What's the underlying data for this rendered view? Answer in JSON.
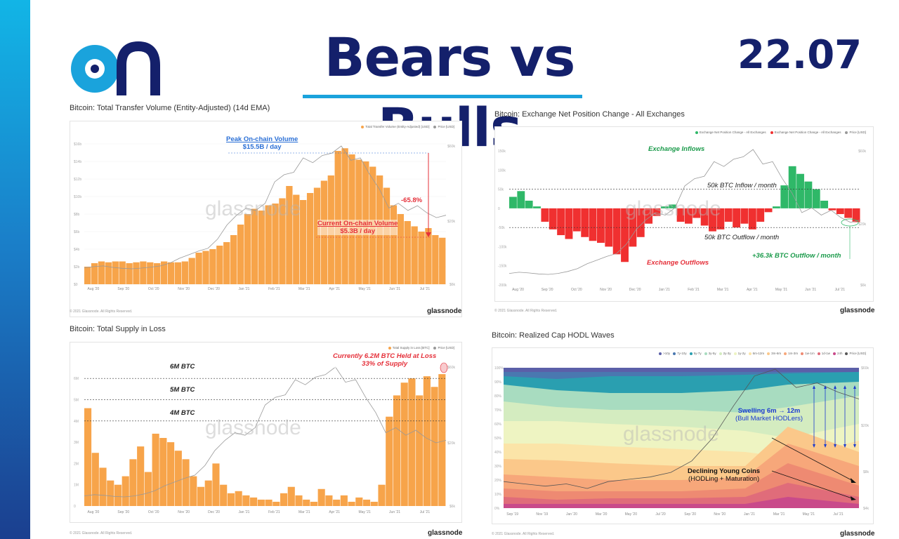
{
  "header": {
    "title": "Bears vs Bulls",
    "date": "22.07"
  },
  "footer": {
    "copyright": "© 2021 Glassnode. All Rights Reserved.",
    "brand": "glassnode",
    "watermark": "glassnode"
  },
  "panels": {
    "p1": {
      "title": "Bitcoin: Total Transfer Volume (Entity-Adjusted) (14d EMA)",
      "legend": [
        "Total Transfer Volume (Entity-Adjusted) [USD]",
        "Price [USD]"
      ],
      "ann_peak_l1": "Peak On-chain Volume",
      "ann_peak_l2": "$15.5B / day",
      "ann_cur_l1": "Current On-chain Volume",
      "ann_cur_l2": "$5.3B / day",
      "ann_pct": "-65.8%"
    },
    "p2": {
      "title": "Bitcoin: Exchange Net Position Change - All Exchanges",
      "legend": [
        "Exchange Net Position Change - All Exchanges",
        "Exchange Net Position Change - All Exchanges",
        "Price [USD]"
      ],
      "ann_inflows": "Exchange Inflows",
      "ann_outflows": "Exchange Outflows",
      "ann_inflow_line": "50k BTC Inflow / month",
      "ann_outflow_line": "50k BTC Outflow / month",
      "ann_current": "+36.3k BTC Outflow / month"
    },
    "p3": {
      "title": "Bitcoin: Total Supply in Loss",
      "legend": [
        "Total Supply in Loss [BTC]",
        "Price [USD]"
      ],
      "ann_6m": "6M BTC",
      "ann_5m": "5M BTC",
      "ann_4m": "4M BTC",
      "ann_cur_l1": "Currently 6.2M BTC Held at Loss",
      "ann_cur_l2": "33% of Supply"
    },
    "p4": {
      "title": "Bitcoin: Realized Cap HODL Waves",
      "legend": [
        ">10y",
        "7y-10y",
        "5y-7y",
        "3y-5y",
        "2y-3y",
        "1y-2y",
        "6m-12m",
        "3m-6m",
        "1m-3m",
        "1w-1m",
        "1d-1w",
        "24h",
        "Price [USD]"
      ],
      "ann_swell_l1": "Swelling 6m → 12m",
      "ann_swell_l2": "(Bull Market HODLers)",
      "ann_young_l1": "Declining Young Coins",
      "ann_young_l2": "(HODLing + Maturation)"
    }
  },
  "chart_data": [
    {
      "type": "bar",
      "title": "Bitcoin: Total Transfer Volume (Entity-Adjusted) (14d EMA)",
      "x_ticks": [
        "Aug '20",
        "Sep '20",
        "Oct '20",
        "Nov '20",
        "Dec '20",
        "Jan '21",
        "Feb '21",
        "Mar '21",
        "Apr '21",
        "May '21",
        "Jun '21",
        "Jul '21"
      ],
      "y_ticks": [
        "$0",
        "$2b",
        "$4b",
        "$6b",
        "$8b",
        "$10b",
        "$12b",
        "$14b",
        "$16b"
      ],
      "y2_ticks": [
        "$6k",
        "$20k",
        "$60k"
      ],
      "ylim": [
        0,
        16
      ],
      "series": [
        {
          "name": "Total Transfer Volume (Entity-Adjusted) [USD]",
          "unit": "$B",
          "color": "#f7a44a",
          "values": [
            2.0,
            2.4,
            2.6,
            2.5,
            2.6,
            2.6,
            2.4,
            2.5,
            2.6,
            2.5,
            2.4,
            2.6,
            2.5,
            2.5,
            2.6,
            3.0,
            3.6,
            3.8,
            4.0,
            4.4,
            4.8,
            5.6,
            6.8,
            8.0,
            8.6,
            8.4,
            9.0,
            9.2,
            9.8,
            11.2,
            10.2,
            9.6,
            10.4,
            11.0,
            11.8,
            12.4,
            15.2,
            15.5,
            14.8,
            14.2,
            14.0,
            13.4,
            12.4,
            11.0,
            9.0,
            8.0,
            7.2,
            6.6,
            6.0,
            6.4,
            5.6,
            5.3
          ]
        },
        {
          "name": "Price [USD]",
          "unit": "$k",
          "color": "#999999",
          "values": [
            11,
            11.5,
            11.8,
            11.2,
            10.8,
            10.6,
            10.9,
            11.3,
            11.8,
            13,
            15,
            16.5,
            18,
            19.2,
            23,
            29,
            33,
            36,
            35,
            38,
            47,
            50,
            51,
            57,
            55,
            58,
            59,
            62,
            56,
            57,
            50,
            44,
            36,
            38,
            35,
            37,
            34,
            32,
            33
          ]
        }
      ]
    },
    {
      "type": "bar",
      "title": "Bitcoin: Exchange Net Position Change - All Exchanges",
      "x_ticks": [
        "Aug '20",
        "Sep '20",
        "Oct '20",
        "Nov '20",
        "Dec '20",
        "Jan '21",
        "Feb '21",
        "Mar '21",
        "Apr '21",
        "May '21",
        "Jun '21",
        "Jul '21"
      ],
      "y_ticks": [
        "150k",
        "100k",
        "50k",
        "0",
        "-50k",
        "-100k",
        "-150k",
        "-200k"
      ],
      "y2_ticks": [
        "$60k",
        "$20k",
        "$6k"
      ],
      "ylim": [
        -200,
        150
      ],
      "series": [
        {
          "name": "Exchange Net Position Change - All Exchanges",
          "unit": "k BTC",
          "color_positive": "#2fb868",
          "color_negative": "#f03030",
          "values": [
            30,
            45,
            20,
            5,
            -35,
            -55,
            -70,
            -80,
            -60,
            -75,
            -85,
            -90,
            -100,
            -120,
            -140,
            -100,
            -75,
            -40,
            -20,
            5,
            10,
            -35,
            -40,
            -25,
            -45,
            -60,
            -55,
            -35,
            -50,
            -40,
            -55,
            -35,
            -10,
            5,
            60,
            110,
            90,
            70,
            50,
            20,
            -5,
            -15,
            -25,
            -36
          ]
        },
        {
          "name": "Price [USD]",
          "unit": "$k",
          "color": "#999999",
          "values": [
            11,
            11.5,
            11.2,
            10.8,
            10.6,
            11,
            11.8,
            13,
            15,
            16.5,
            18,
            19.2,
            23,
            29,
            33,
            36,
            35,
            38,
            47,
            50,
            51,
            57,
            55,
            58,
            59,
            62,
            56,
            57,
            50,
            44,
            36,
            38,
            35,
            37,
            34,
            32,
            33
          ]
        }
      ]
    },
    {
      "type": "bar",
      "title": "Bitcoin: Total Supply in Loss",
      "x_ticks": [
        "Aug '20",
        "Sep '20",
        "Oct '20",
        "Nov '20",
        "Dec '20",
        "Jan '21",
        "Feb '21",
        "Mar '21",
        "Apr '21",
        "May '21",
        "Jun '21",
        "Jul '21"
      ],
      "y_ticks": [
        "0",
        "1M",
        "2M",
        "3M",
        "4M",
        "5M",
        "6M"
      ],
      "y2_ticks": [
        "$6k",
        "$20k",
        "$60k"
      ],
      "ylim": [
        0,
        6.5
      ],
      "series": [
        {
          "name": "Total Supply in Loss [BTC]",
          "unit": "M BTC",
          "color": "#f7a44a",
          "values": [
            4.6,
            2.5,
            1.8,
            1.2,
            1.0,
            1.4,
            2.2,
            2.8,
            1.6,
            3.4,
            3.2,
            3.0,
            2.6,
            2.2,
            1.4,
            0.9,
            1.2,
            2.0,
            1.0,
            0.6,
            0.7,
            0.5,
            0.4,
            0.3,
            0.3,
            0.2,
            0.6,
            0.9,
            0.5,
            0.3,
            0.2,
            0.8,
            0.5,
            0.3,
            0.5,
            0.2,
            0.4,
            0.3,
            0.2,
            1.0,
            4.2,
            5.2,
            5.8,
            6.0,
            5.2,
            6.1,
            5.6,
            6.2
          ]
        },
        {
          "name": "Price [USD]",
          "unit": "$k",
          "color": "#999999",
          "values": [
            11,
            11.5,
            11.2,
            10.8,
            10.6,
            11,
            11.8,
            13,
            15,
            16.5,
            18,
            19.2,
            23,
            29,
            33,
            36,
            35,
            38,
            47,
            50,
            51,
            57,
            55,
            58,
            59,
            62,
            56,
            57,
            50,
            44,
            36,
            38,
            35,
            37,
            34,
            32,
            33
          ]
        }
      ]
    },
    {
      "type": "area",
      "title": "Bitcoin: Realized Cap HODL Waves",
      "x_ticks": [
        "Sep '19",
        "Nov '19",
        "Jan '20",
        "Mar '20",
        "May '20",
        "Jul '20",
        "Sep '20",
        "Nov '20",
        "Jan '21",
        "Mar '21",
        "May '21",
        "Jul '21"
      ],
      "y_ticks": [
        "0%",
        "10%",
        "20%",
        "30%",
        "40%",
        "50%",
        "60%",
        "70%",
        "80%",
        "90%",
        "100%"
      ],
      "y2_ticks": [
        "$60k",
        "$20k",
        "$8k",
        "$4k"
      ],
      "ylim": [
        0,
        100
      ],
      "series": [
        {
          "name": ">10y",
          "color": "#5b5fa8"
        },
        {
          "name": "7y-10y",
          "color": "#4a78b0"
        },
        {
          "name": "5y-7y",
          "color": "#2a9fb0"
        },
        {
          "name": "3y-5y",
          "color": "#a8dcc0"
        },
        {
          "name": "2y-3y",
          "color": "#d4ecc0"
        },
        {
          "name": "1y-2y",
          "color": "#eef4c2"
        },
        {
          "name": "6m-12m",
          "color": "#fbe4a8"
        },
        {
          "name": "3m-6m",
          "color": "#fbc88a"
        },
        {
          "name": "1m-3m",
          "color": "#f7a77a"
        },
        {
          "name": "1w-1m",
          "color": "#ee8a72"
        },
        {
          "name": "1d-1w",
          "color": "#e06c7a"
        },
        {
          "name": "24h",
          "color": "#c94a8a"
        },
        {
          "name": "Price [USD]",
          "color": "#555555"
        }
      ]
    }
  ]
}
